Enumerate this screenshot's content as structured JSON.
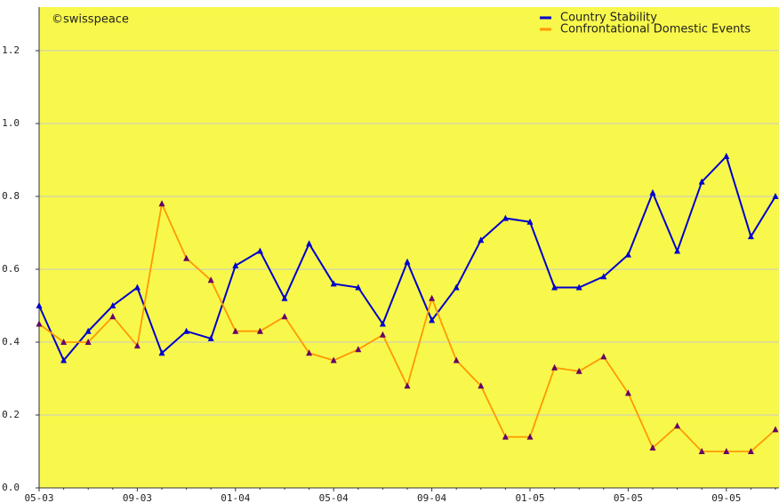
{
  "chart_data": {
    "type": "line",
    "annotation": "©swisspeace",
    "categories": [
      "05-03",
      null,
      null,
      null,
      "09-03",
      null,
      null,
      null,
      "01-04",
      null,
      null,
      null,
      "05-04",
      null,
      null,
      null,
      "09-04",
      null,
      null,
      null,
      "01-05",
      null,
      null,
      null,
      "05-05",
      null,
      null,
      null,
      "09-05",
      null,
      null
    ],
    "series": [
      {
        "name": "Country Stability",
        "color": "#0000cc",
        "marker_color": "#0000cc",
        "values": [
          0.5,
          0.35,
          0.43,
          0.5,
          0.55,
          0.37,
          0.43,
          0.41,
          0.61,
          0.65,
          0.52,
          0.67,
          0.56,
          0.55,
          0.45,
          0.62,
          0.46,
          0.55,
          0.68,
          0.74,
          0.73,
          0.55,
          0.55,
          0.58,
          0.64,
          0.81,
          0.65,
          0.84,
          0.91,
          0.69,
          0.8
        ]
      },
      {
        "name": "Confrontational Domestic Events",
        "color": "#ff9900",
        "marker_color": "#660066",
        "values": [
          0.45,
          0.4,
          0.4,
          0.47,
          0.39,
          0.78,
          0.63,
          0.57,
          0.43,
          0.43,
          0.47,
          0.37,
          0.35,
          0.38,
          0.42,
          0.28,
          0.52,
          0.35,
          0.28,
          0.14,
          0.14,
          0.33,
          0.32,
          0.36,
          0.26,
          0.11,
          0.17,
          0.1,
          0.1,
          0.1,
          0.16
        ]
      }
    ],
    "ylim": [
      0,
      1.2
    ],
    "yticks": [
      {
        "value": 0,
        "label": "0.0"
      },
      0.2,
      0.4,
      0.6,
      0.8,
      {
        "value": 1,
        "label": "1.0"
      },
      1.2
    ],
    "grid": true,
    "background": "#f8f84c",
    "legend": "top-right"
  }
}
